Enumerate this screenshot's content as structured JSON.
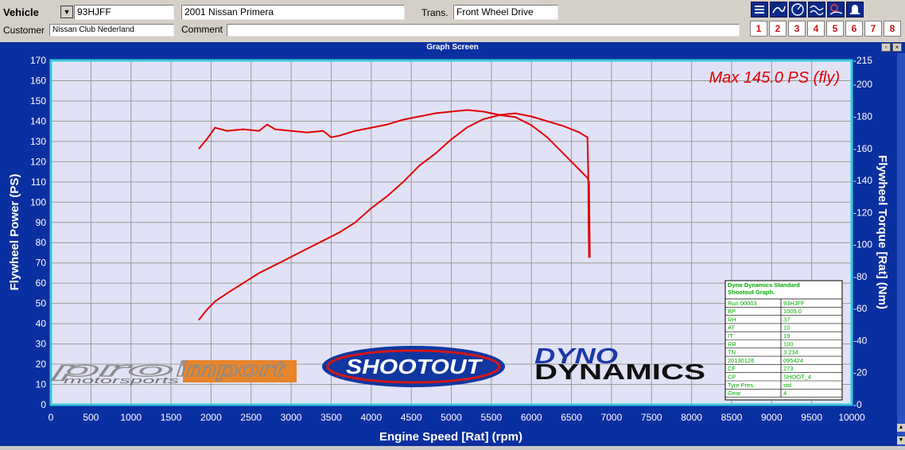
{
  "header": {
    "vehicle_label": "Vehicle",
    "vehicle_id": "93HJFF",
    "vehicle_model": "2001 Nissan Primera",
    "trans_label": "Trans.",
    "trans_value": "Front Wheel Drive",
    "customer_label": "Customer",
    "customer_value": "Nissan Club Nederland",
    "comment_label": "Comment",
    "comment_value": ""
  },
  "toolbar": {
    "icons": [
      "menu-icon",
      "curve-icon",
      "gauge-icon",
      "waves-icon",
      "timer-icon",
      "bell-icon"
    ],
    "numbers": [
      "1",
      "2",
      "3",
      "4",
      "5",
      "6",
      "7",
      "8"
    ]
  },
  "window": {
    "title": "Graph Screen"
  },
  "colors": {
    "panel": "#0a2fa0",
    "plot": "#e2e2f6",
    "curve": "#e00000",
    "axis_text": "#ffffff",
    "frame": "#00e5ff"
  },
  "chart_data": {
    "type": "line",
    "xlabel": "Engine Speed [Rat] (rpm)",
    "ylabel_left": "Flywheel Power (PS)",
    "ylabel_right": "Flywheel Torque [Rat] (Nm)",
    "xlim": [
      0,
      10000
    ],
    "xticks": [
      0,
      500,
      1000,
      1500,
      2000,
      2500,
      3000,
      3500,
      4000,
      4500,
      5000,
      5500,
      6000,
      6500,
      7000,
      7500,
      8000,
      8500,
      9000,
      9500,
      10000
    ],
    "ylim_left": [
      0,
      170
    ],
    "yticks_left": [
      0,
      10,
      20,
      30,
      40,
      50,
      60,
      70,
      80,
      90,
      100,
      110,
      120,
      130,
      140,
      150,
      160,
      170
    ],
    "ylim_right": [
      0,
      215
    ],
    "yticks_right": [
      0,
      20,
      40,
      60,
      80,
      100,
      120,
      140,
      160,
      180,
      200,
      215
    ],
    "grid": true,
    "annotation": "Max 145.0 PS (fly)",
    "logos": [
      "pro import motorsports",
      "SHOOTOUT",
      "DYNO DYNAMICS"
    ],
    "series": [
      {
        "axis": "left",
        "x": [
          1850,
          1950,
          2050,
          2200,
          2400,
          2600,
          2800,
          3000,
          3200,
          3400,
          3600,
          3800,
          4000,
          4200,
          4400,
          4600,
          4800,
          5000,
          5200,
          5400,
          5600,
          5800,
          6000,
          6200,
          6400,
          6600,
          6700,
          6720,
          6725,
          6730
        ],
        "values": [
          42,
          47,
          51,
          55,
          60,
          65,
          69,
          73,
          77,
          81,
          85,
          90,
          97,
          103,
          110,
          118,
          124,
          131,
          137,
          141,
          143,
          142,
          138,
          132,
          124,
          116,
          112,
          110,
          90,
          73
        ]
      },
      {
        "axis": "right",
        "x": [
          1850,
          1950,
          2050,
          2200,
          2400,
          2600,
          2700,
          2800,
          3000,
          3200,
          3400,
          3500,
          3600,
          3800,
          4000,
          4200,
          4400,
          4600,
          4800,
          5000,
          5200,
          5400,
          5600,
          5800,
          6000,
          6200,
          6400,
          6600,
          6700,
          6710,
          6715,
          6720
        ],
        "values": [
          160,
          166,
          173,
          171,
          172,
          171,
          175,
          172,
          171,
          170,
          171,
          167,
          168,
          171,
          173,
          175,
          178,
          180,
          182,
          183,
          184,
          183,
          181,
          182,
          180,
          177,
          174,
          170,
          167,
          145,
          110,
          92
        ]
      }
    ],
    "info_table": {
      "title": "Dyno Dynamics Standard Shootout Graph.",
      "rows": [
        [
          "Run 00003",
          "93HJFF"
        ],
        [
          "BP",
          "1005.0"
        ],
        [
          "RH",
          "37"
        ],
        [
          "AT",
          "10"
        ],
        [
          "IT",
          "19"
        ],
        [
          "RR",
          "100"
        ],
        [
          "TN",
          "3.234"
        ],
        [
          "20130126",
          "095424"
        ],
        [
          "CF",
          "273"
        ],
        [
          "CP",
          "SHOOT_4"
        ],
        [
          "Tyre Pres.",
          "std"
        ],
        [
          "Gear",
          "4"
        ]
      ]
    }
  }
}
